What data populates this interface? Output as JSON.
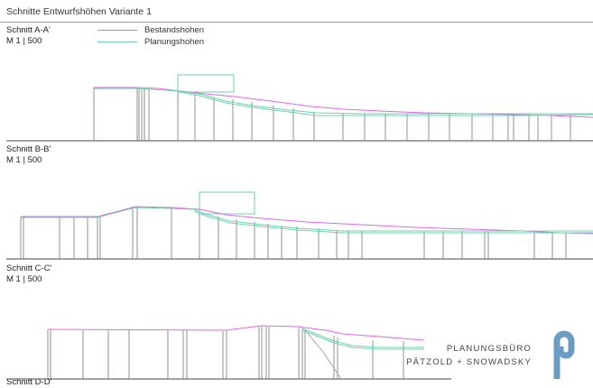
{
  "header": {
    "title": "Schnitte Entwurfshöhen Variante 1"
  },
  "legend": [
    {
      "label": "Bestandshohen",
      "color": "#e266e6"
    },
    {
      "label": "Planungshohen",
      "color": "#6cd1b0"
    }
  ],
  "sections": [
    {
      "name": "Schnitt A-A'",
      "scale": "M 1 | 500"
    },
    {
      "name": "Schnitt B-B'",
      "scale": "M 1 | 500"
    },
    {
      "name": "Schnitt C-C'",
      "scale": "M 1 | 500"
    },
    {
      "name": "Schnitt D-D'",
      "scale": ""
    }
  ],
  "colors": {
    "existing": "#e266e6",
    "planned": "#6cd1b0",
    "structure": "#6e6e6e",
    "ground": "#444444"
  },
  "logo": {
    "line1": "PLANUNGSBÜRO",
    "line2": "PÄTZOLD + SNOWADSKY",
    "icon": "pipe-logo-icon",
    "color": "#6a9cc4"
  }
}
